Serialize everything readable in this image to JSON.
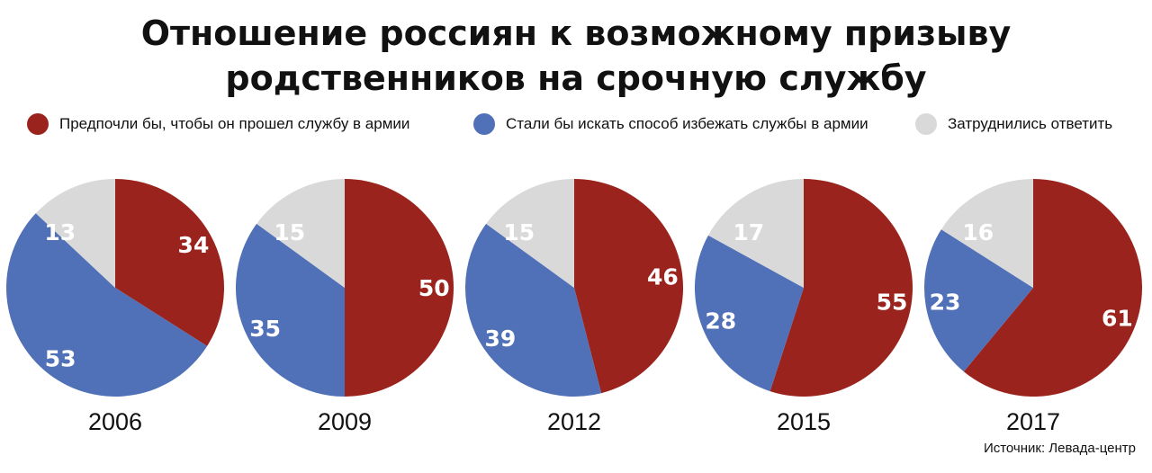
{
  "title_line1": "Отношение россиян к возможному призыву",
  "title_line2": "родственников на срочную службу",
  "source": "Источник: Левада-центр",
  "colors": {
    "serve": "#9b231d",
    "avoid": "#5070b8",
    "unsure": "#d9d9d9"
  },
  "chart_data": {
    "type": "pie",
    "title": "Отношение россиян к возможному призыву родственников на срочную службу",
    "legend": [
      "Предпочли бы, чтобы он прошел службу в армии",
      "Стали бы искать способ избежать службы в армии",
      "Затруднились ответить"
    ],
    "legend_position": "top",
    "pies": [
      {
        "year": "2006",
        "serve": 34,
        "avoid": 53,
        "unsure": 13
      },
      {
        "year": "2009",
        "serve": 50,
        "avoid": 35,
        "unsure": 15
      },
      {
        "year": "2012",
        "serve": 46,
        "avoid": 39,
        "unsure": 15
      },
      {
        "year": "2015",
        "serve": 55,
        "avoid": 28,
        "unsure": 17
      },
      {
        "year": "2017",
        "serve": 61,
        "avoid": 23,
        "unsure": 16
      }
    ]
  }
}
